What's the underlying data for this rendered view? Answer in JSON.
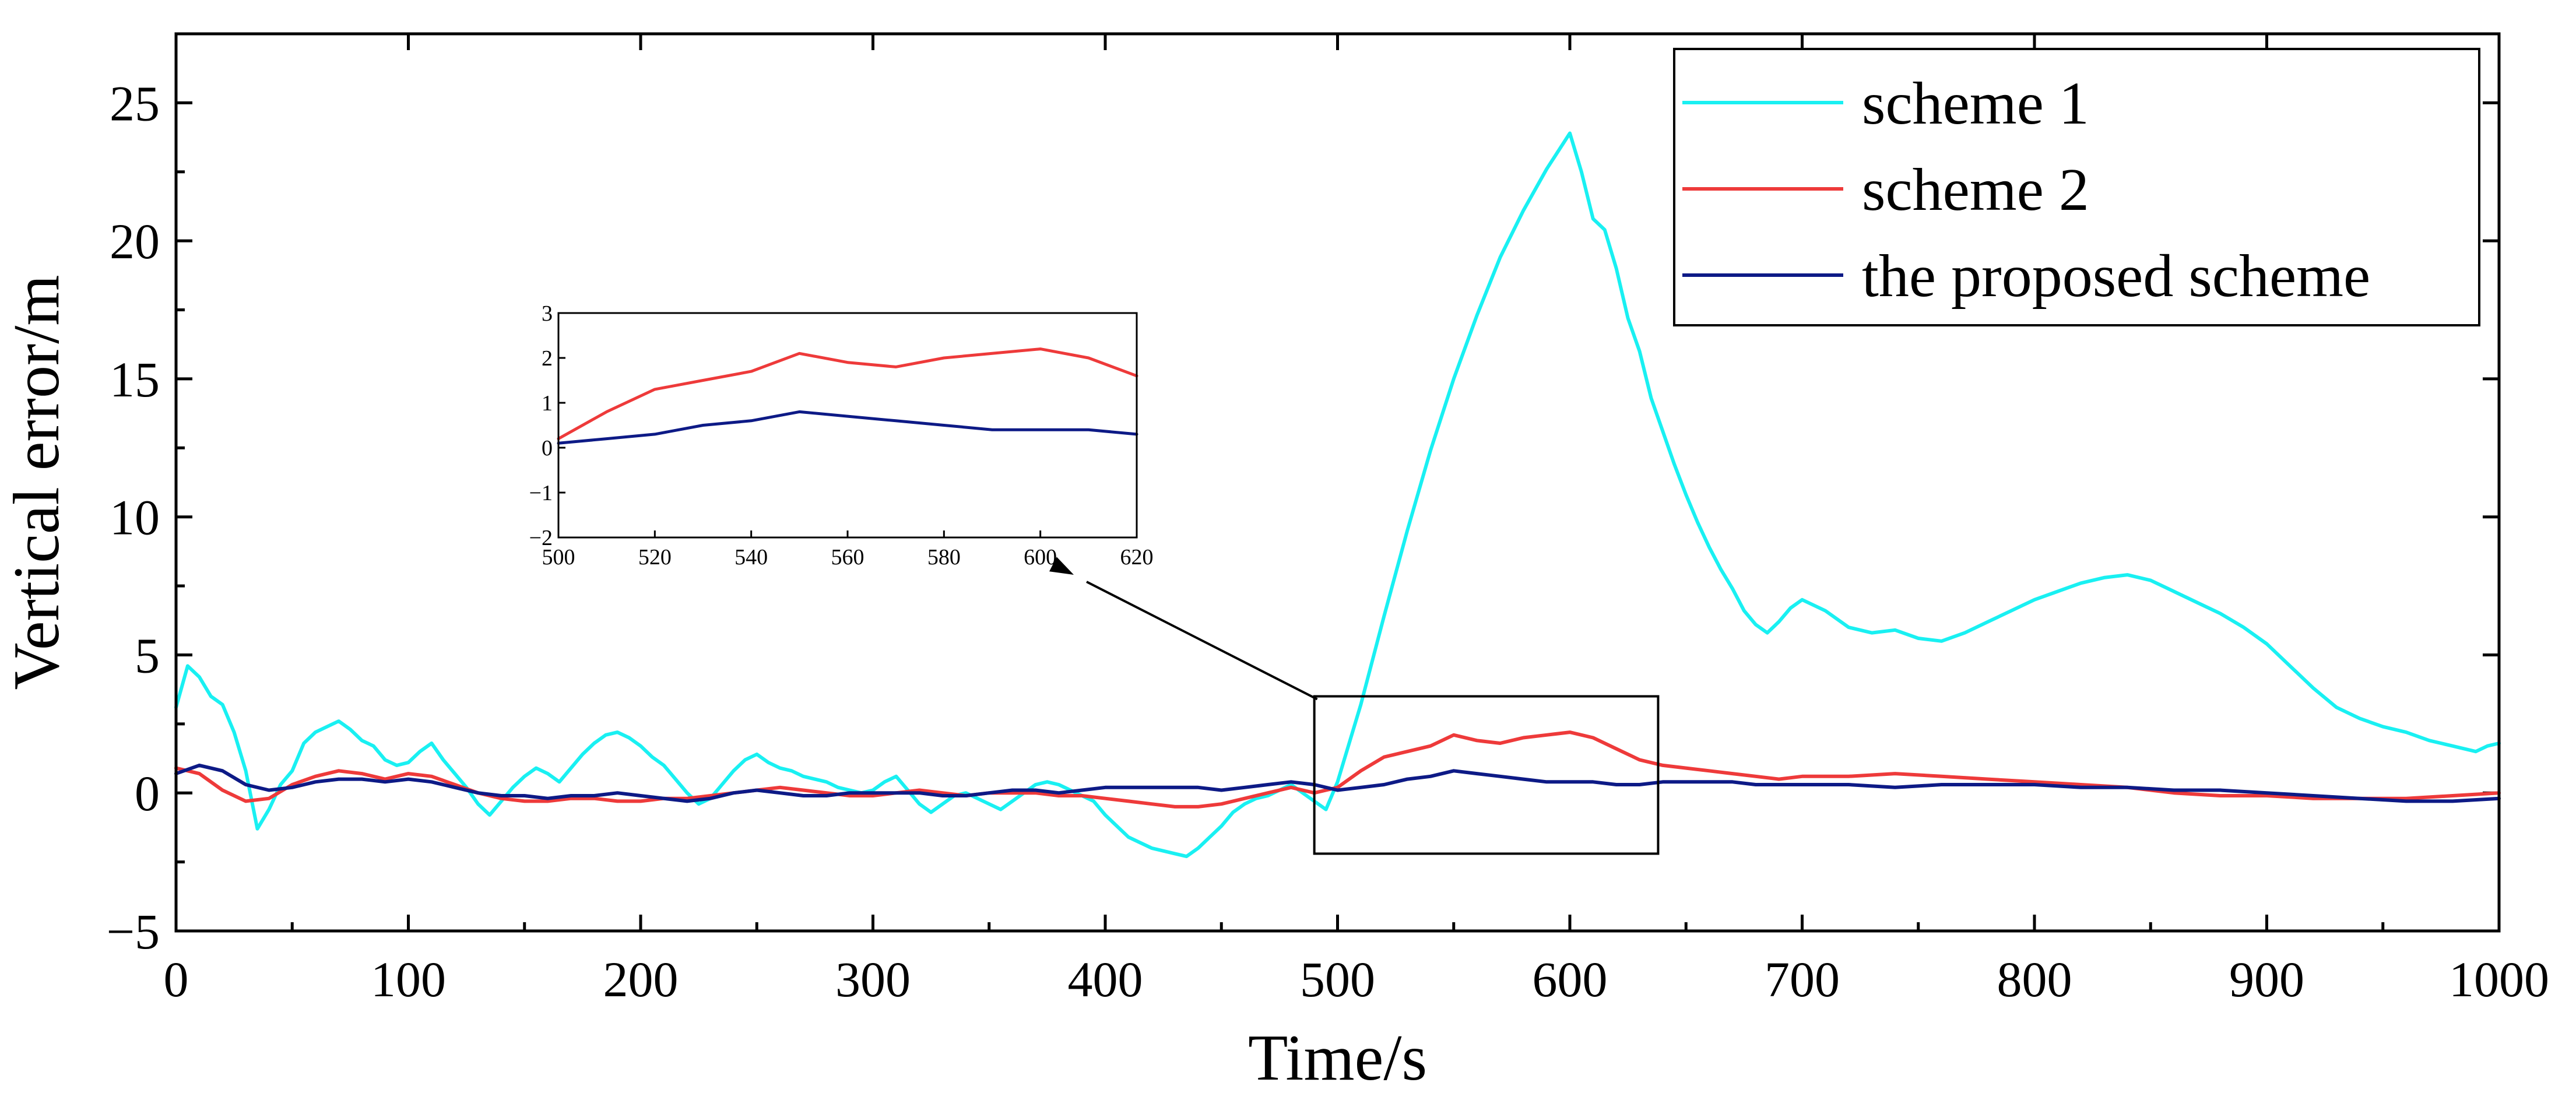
{
  "chart_data": {
    "type": "line",
    "title": "",
    "xlabel": "Time/s",
    "ylabel": "Vertical error/m",
    "xlim": [
      0,
      1000
    ],
    "ylim": [
      -5,
      27.5
    ],
    "xticks": [
      "0",
      "100",
      "200",
      "300",
      "400",
      "500",
      "600",
      "700",
      "800",
      "900",
      "1000"
    ],
    "yticks": [
      "−5",
      "0",
      "5",
      "10",
      "15",
      "20",
      "25"
    ],
    "legend_position": "top-right",
    "series": [
      {
        "name": "scheme 1",
        "color": "#19f0f2",
        "x": [
          0,
          5,
          10,
          15,
          20,
          25,
          30,
          35,
          40,
          45,
          50,
          55,
          60,
          65,
          70,
          75,
          80,
          85,
          90,
          95,
          100,
          105,
          110,
          115,
          120,
          125,
          130,
          135,
          140,
          145,
          150,
          155,
          160,
          165,
          170,
          175,
          180,
          185,
          190,
          195,
          200,
          205,
          210,
          215,
          220,
          225,
          230,
          235,
          240,
          245,
          250,
          255,
          260,
          265,
          270,
          275,
          280,
          285,
          290,
          295,
          300,
          305,
          310,
          315,
          320,
          325,
          330,
          335,
          340,
          345,
          350,
          355,
          360,
          365,
          370,
          375,
          380,
          385,
          390,
          395,
          400,
          405,
          410,
          415,
          420,
          425,
          430,
          435,
          440,
          445,
          450,
          455,
          460,
          465,
          470,
          475,
          480,
          485,
          490,
          495,
          500,
          510,
          520,
          530,
          540,
          550,
          560,
          570,
          580,
          590,
          600,
          605,
          610,
          615,
          620,
          625,
          630,
          635,
          640,
          645,
          650,
          655,
          660,
          665,
          670,
          675,
          680,
          685,
          690,
          695,
          700,
          710,
          720,
          730,
          740,
          750,
          760,
          770,
          780,
          790,
          800,
          810,
          820,
          830,
          840,
          850,
          860,
          870,
          880,
          890,
          900,
          910,
          920,
          930,
          940,
          950,
          960,
          970,
          980,
          990,
          995,
          1000
        ],
        "y": [
          3.1,
          4.6,
          4.2,
          3.5,
          3.2,
          2.2,
          0.8,
          -1.3,
          -0.6,
          0.3,
          0.8,
          1.8,
          2.2,
          2.4,
          2.6,
          2.3,
          1.9,
          1.7,
          1.2,
          1.0,
          1.1,
          1.5,
          1.8,
          1.2,
          0.7,
          0.2,
          -0.4,
          -0.8,
          -0.3,
          0.2,
          0.6,
          0.9,
          0.7,
          0.4,
          0.9,
          1.4,
          1.8,
          2.1,
          2.2,
          2.0,
          1.7,
          1.3,
          1.0,
          0.5,
          0.0,
          -0.4,
          -0.2,
          0.3,
          0.8,
          1.2,
          1.4,
          1.1,
          0.9,
          0.8,
          0.6,
          0.5,
          0.4,
          0.2,
          0.1,
          0.0,
          0.1,
          0.4,
          0.6,
          0.1,
          -0.4,
          -0.7,
          -0.4,
          -0.1,
          0.0,
          -0.2,
          -0.4,
          -0.6,
          -0.3,
          0.0,
          0.3,
          0.4,
          0.3,
          0.1,
          -0.1,
          -0.3,
          -0.8,
          -1.2,
          -1.6,
          -1.8,
          -2.0,
          -2.1,
          -2.2,
          -2.3,
          -2.0,
          -1.6,
          -1.2,
          -0.7,
          -0.4,
          -0.2,
          -0.1,
          0.1,
          0.3,
          0.0,
          -0.3,
          -0.6,
          0.4,
          3.2,
          6.4,
          9.5,
          12.4,
          15.0,
          17.3,
          19.4,
          21.1,
          22.6,
          23.9,
          22.5,
          20.8,
          20.4,
          19.0,
          17.2,
          16.0,
          14.3,
          13.1,
          11.9,
          10.8,
          9.8,
          8.9,
          8.1,
          7.4,
          6.6,
          6.1,
          5.8,
          6.2,
          6.7,
          7.0,
          6.6,
          6.0,
          5.8,
          5.9,
          5.6,
          5.5,
          5.8,
          6.2,
          6.6,
          7.0,
          7.3,
          7.6,
          7.8,
          7.9,
          7.7,
          7.3,
          6.9,
          6.5,
          6.0,
          5.4,
          4.6,
          3.8,
          3.1,
          2.7,
          2.4,
          2.2,
          1.9,
          1.7,
          1.5,
          1.7,
          1.8
        ]
      },
      {
        "name": "scheme 2",
        "color": "#ee3a3a",
        "x": [
          0,
          10,
          20,
          30,
          40,
          50,
          60,
          70,
          80,
          90,
          100,
          110,
          120,
          130,
          140,
          150,
          160,
          170,
          180,
          190,
          200,
          210,
          220,
          230,
          240,
          250,
          260,
          270,
          280,
          290,
          300,
          310,
          320,
          330,
          340,
          350,
          360,
          370,
          380,
          390,
          400,
          410,
          420,
          430,
          440,
          450,
          460,
          470,
          480,
          490,
          500,
          510,
          520,
          530,
          540,
          550,
          560,
          570,
          580,
          590,
          600,
          610,
          620,
          630,
          640,
          650,
          660,
          670,
          680,
          690,
          700,
          720,
          740,
          760,
          780,
          800,
          820,
          840,
          860,
          880,
          900,
          920,
          940,
          960,
          980,
          1000
        ],
        "y": [
          0.9,
          0.7,
          0.1,
          -0.3,
          -0.2,
          0.3,
          0.6,
          0.8,
          0.7,
          0.5,
          0.7,
          0.6,
          0.3,
          0.0,
          -0.2,
          -0.3,
          -0.3,
          -0.2,
          -0.2,
          -0.3,
          -0.3,
          -0.2,
          -0.2,
          -0.1,
          0.0,
          0.1,
          0.2,
          0.1,
          0.0,
          -0.1,
          -0.1,
          0.0,
          0.1,
          0.0,
          -0.1,
          0.0,
          0.0,
          0.0,
          -0.1,
          -0.1,
          -0.2,
          -0.3,
          -0.4,
          -0.5,
          -0.5,
          -0.4,
          -0.2,
          0.0,
          0.2,
          0.0,
          0.2,
          0.8,
          1.3,
          1.5,
          1.7,
          2.1,
          1.9,
          1.8,
          2.0,
          2.1,
          2.2,
          2.0,
          1.6,
          1.2,
          1.0,
          0.9,
          0.8,
          0.7,
          0.6,
          0.5,
          0.6,
          0.6,
          0.7,
          0.6,
          0.5,
          0.4,
          0.3,
          0.2,
          0.0,
          -0.1,
          -0.1,
          -0.2,
          -0.2,
          -0.2,
          -0.1,
          0.0
        ]
      },
      {
        "name": "the proposed scheme",
        "color": "#0d1a86",
        "x": [
          0,
          10,
          20,
          30,
          40,
          50,
          60,
          70,
          80,
          90,
          100,
          110,
          120,
          130,
          140,
          150,
          160,
          170,
          180,
          190,
          200,
          210,
          220,
          230,
          240,
          250,
          260,
          270,
          280,
          290,
          300,
          310,
          320,
          330,
          340,
          350,
          360,
          370,
          380,
          390,
          400,
          410,
          420,
          430,
          440,
          450,
          460,
          470,
          480,
          490,
          500,
          510,
          520,
          530,
          540,
          550,
          560,
          570,
          580,
          590,
          600,
          610,
          620,
          630,
          640,
          650,
          660,
          670,
          680,
          690,
          700,
          720,
          740,
          760,
          780,
          800,
          820,
          840,
          860,
          880,
          900,
          920,
          940,
          960,
          980,
          1000
        ],
        "y": [
          0.7,
          1.0,
          0.8,
          0.3,
          0.1,
          0.2,
          0.4,
          0.5,
          0.5,
          0.4,
          0.5,
          0.4,
          0.2,
          0.0,
          -0.1,
          -0.1,
          -0.2,
          -0.1,
          -0.1,
          0.0,
          -0.1,
          -0.2,
          -0.3,
          -0.2,
          0.0,
          0.1,
          0.0,
          -0.1,
          -0.1,
          0.0,
          0.0,
          0.0,
          0.0,
          -0.1,
          -0.1,
          0.0,
          0.1,
          0.1,
          0.0,
          0.1,
          0.2,
          0.2,
          0.2,
          0.2,
          0.2,
          0.1,
          0.2,
          0.3,
          0.4,
          0.3,
          0.1,
          0.2,
          0.3,
          0.5,
          0.6,
          0.8,
          0.7,
          0.6,
          0.5,
          0.4,
          0.4,
          0.4,
          0.3,
          0.3,
          0.4,
          0.4,
          0.4,
          0.4,
          0.3,
          0.3,
          0.3,
          0.3,
          0.2,
          0.3,
          0.3,
          0.3,
          0.2,
          0.2,
          0.1,
          0.1,
          0.0,
          -0.1,
          -0.2,
          -0.3,
          -0.3,
          -0.2
        ]
      }
    ],
    "inset": {
      "xlim": [
        500,
        620
      ],
      "ylim": [
        -2,
        3
      ],
      "xticks": [
        "500",
        "520",
        "540",
        "560",
        "580",
        "600",
        "620"
      ],
      "yticks": [
        "−2",
        "−1",
        "0",
        "1",
        "2",
        "3"
      ],
      "zoom_region": {
        "x": [
          490,
          638
        ],
        "y": [
          -2.2,
          3.5
        ]
      }
    }
  }
}
